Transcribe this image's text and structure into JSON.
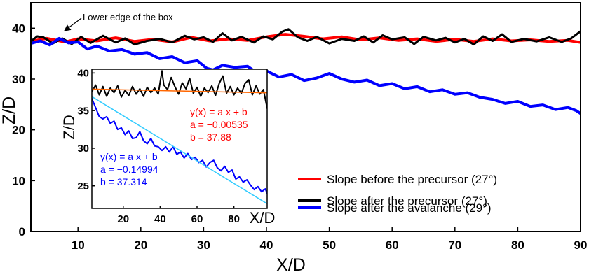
{
  "chart_data": [
    {
      "type": "line",
      "xlabel": "X/D",
      "ylabel": "Z/D",
      "xlim": [
        2.5,
        90
      ],
      "ylim": [
        0,
        45
      ],
      "xticks": [
        10,
        20,
        30,
        40,
        50,
        60,
        70,
        80,
        90
      ],
      "yticks": [
        0,
        10,
        20,
        30,
        40
      ],
      "grid": false,
      "legend_position": "bottom-right",
      "annotations": [
        {
          "text": "Lower edge of the box",
          "arrow_target": [
            4,
            38.2
          ]
        }
      ],
      "series": [
        {
          "name": "Slope before the precursor (27°)",
          "color": "#ff0000",
          "points": [
            [
              2.5,
              37.4
            ],
            [
              5,
              38.0
            ],
            [
              8,
              37.3
            ],
            [
              10,
              37.9
            ],
            [
              13,
              37.5
            ],
            [
              16,
              38.1
            ],
            [
              19,
              37.4
            ],
            [
              22,
              37.8
            ],
            [
              25,
              37.3
            ],
            [
              28,
              38.2
            ],
            [
              31,
              37.5
            ],
            [
              34,
              37.9
            ],
            [
              37,
              37.6
            ],
            [
              40,
              38.3
            ],
            [
              43,
              38.8
            ],
            [
              46,
              38.4
            ],
            [
              49,
              37.9
            ],
            [
              52,
              38.3
            ],
            [
              55,
              37.7
            ],
            [
              58,
              38.1
            ],
            [
              61,
              37.6
            ],
            [
              64,
              37.9
            ],
            [
              67,
              37.4
            ],
            [
              70,
              37.8
            ],
            [
              73,
              37.4
            ],
            [
              76,
              37.9
            ],
            [
              79,
              37.5
            ],
            [
              82,
              37.7
            ],
            [
              85,
              37.4
            ],
            [
              88,
              37.6
            ],
            [
              90,
              37.2
            ]
          ]
        },
        {
          "name": "Slope after the precursor (27°)",
          "color": "#000000",
          "points": [
            [
              2.5,
              37.4
            ],
            [
              3.5,
              38.4
            ],
            [
              4.5,
              38.2
            ],
            [
              6,
              37.0
            ],
            [
              7.5,
              38.0
            ],
            [
              9,
              36.9
            ],
            [
              10.5,
              38.3
            ],
            [
              12,
              37.1
            ],
            [
              14,
              38.5
            ],
            [
              16,
              37.2
            ],
            [
              17.5,
              38.0
            ],
            [
              19,
              36.8
            ],
            [
              21,
              37.5
            ],
            [
              23,
              37.9
            ],
            [
              25,
              37.2
            ],
            [
              27,
              38.5
            ],
            [
              28.5,
              37.8
            ],
            [
              30,
              38.2
            ],
            [
              31.5,
              37.3
            ],
            [
              33,
              39.0
            ],
            [
              34.5,
              37.6
            ],
            [
              36,
              38.3
            ],
            [
              38,
              37.2
            ],
            [
              39.5,
              38.4
            ],
            [
              41,
              37.8
            ],
            [
              42.5,
              39.3
            ],
            [
              43.5,
              39.8
            ],
            [
              45,
              38.2
            ],
            [
              46.5,
              37.5
            ],
            [
              48,
              38.3
            ],
            [
              50,
              37.0
            ],
            [
              52,
              37.9
            ],
            [
              54,
              37.5
            ],
            [
              55.5,
              38.4
            ],
            [
              57,
              37.2
            ],
            [
              58.5,
              38.6
            ],
            [
              60,
              37.8
            ],
            [
              62,
              38.2
            ],
            [
              63.5,
              36.9
            ],
            [
              65,
              38.3
            ],
            [
              67,
              37.6
            ],
            [
              68.5,
              38.1
            ],
            [
              70,
              37.2
            ],
            [
              71.5,
              37.9
            ],
            [
              73,
              36.8
            ],
            [
              74.5,
              38.4
            ],
            [
              76,
              37.5
            ],
            [
              77.5,
              38.8
            ],
            [
              79,
              37.3
            ],
            [
              81,
              37.9
            ],
            [
              83,
              37.4
            ],
            [
              85,
              38.2
            ],
            [
              87,
              37.3
            ],
            [
              88.5,
              38.0
            ],
            [
              90,
              39.4
            ]
          ]
        },
        {
          "name": "Slope after the avalanche (29°)",
          "color": "#0000ff",
          "points": [
            [
              2.5,
              37.0
            ],
            [
              4,
              37.5
            ],
            [
              5.5,
              36.7
            ],
            [
              7,
              38.0
            ],
            [
              8.5,
              37.1
            ],
            [
              10,
              37.3
            ],
            [
              11.5,
              35.9
            ],
            [
              13,
              36.5
            ],
            [
              15,
              35.5
            ],
            [
              17,
              35.8
            ],
            [
              19,
              34.9
            ],
            [
              21,
              35.2
            ],
            [
              23,
              34.0
            ],
            [
              25,
              34.4
            ],
            [
              27,
              33.2
            ],
            [
              29,
              33.6
            ],
            [
              30.5,
              32.1
            ],
            [
              31.5,
              31.8
            ],
            [
              33,
              32.7
            ],
            [
              35,
              32.3
            ],
            [
              37,
              32.5
            ],
            [
              38.5,
              31.2
            ],
            [
              40,
              31.6
            ],
            [
              42,
              30.4
            ],
            [
              44,
              30.9
            ],
            [
              46,
              29.7
            ],
            [
              48,
              30.2
            ],
            [
              50,
              31.1
            ],
            [
              52,
              30.0
            ],
            [
              54,
              29.4
            ],
            [
              56,
              29.8
            ],
            [
              58,
              28.7
            ],
            [
              60,
              29.1
            ],
            [
              62,
              28.1
            ],
            [
              64,
              28.5
            ],
            [
              66,
              27.5
            ],
            [
              68,
              27.9
            ],
            [
              70,
              27.0
            ],
            [
              72,
              27.3
            ],
            [
              74,
              26.4
            ],
            [
              76,
              26.0
            ],
            [
              78,
              25.2
            ],
            [
              80,
              25.6
            ],
            [
              82,
              24.6
            ],
            [
              84,
              24.9
            ],
            [
              86,
              24.0
            ],
            [
              88,
              24.4
            ],
            [
              89.3,
              23.8
            ],
            [
              90,
              23.2
            ]
          ]
        }
      ]
    },
    {
      "type": "line",
      "xlabel": "X/D",
      "ylabel": "Z/D",
      "xlim": [
        3,
        98
      ],
      "ylim": [
        22,
        40.5
      ],
      "xticks": [
        20,
        40,
        60,
        80
      ],
      "yticks": [
        25,
        30,
        35,
        40
      ],
      "grid": false,
      "annotations": [
        {
          "lines": [
            "y(x) = a x + b",
            "a = −0.00535",
            "b = 37.88"
          ],
          "color": "#ff0000"
        },
        {
          "lines": [
            "y(x) = a x + b",
            "a = −0.14994",
            "b = 37.314"
          ],
          "color": "#0000ff"
        }
      ],
      "series": [
        {
          "name": "",
          "color": "#000000",
          "points": [
            [
              3,
              37.5
            ],
            [
              5,
              38.4
            ],
            [
              7,
              37.1
            ],
            [
              9,
              38.2
            ],
            [
              11,
              36.9
            ],
            [
              13,
              38.0
            ],
            [
              15,
              37.4
            ],
            [
              17,
              38.3
            ],
            [
              19,
              36.8
            ],
            [
              21,
              37.7
            ],
            [
              23,
              37.0
            ],
            [
              25,
              38.2
            ],
            [
              27,
              37.2
            ],
            [
              29,
              37.9
            ],
            [
              31,
              36.9
            ],
            [
              33,
              38.1
            ],
            [
              35,
              37.4
            ],
            [
              37,
              38.0
            ],
            [
              39,
              37.2
            ],
            [
              41,
              40.3
            ],
            [
              42,
              38.4
            ],
            [
              44,
              37.8
            ],
            [
              46,
              39.4
            ],
            [
              48,
              38.2
            ],
            [
              50,
              37.2
            ],
            [
              52,
              38.7
            ],
            [
              54,
              37.9
            ],
            [
              56,
              39.3
            ],
            [
              58,
              37.3
            ],
            [
              60,
              38.1
            ],
            [
              62,
              36.9
            ],
            [
              64,
              38.0
            ],
            [
              66,
              37.4
            ],
            [
              68,
              38.3
            ],
            [
              70,
              37.0
            ],
            [
              72,
              38.6
            ],
            [
              74,
              39.6
            ],
            [
              76,
              37.3
            ],
            [
              78,
              38.2
            ],
            [
              80,
              37.1
            ],
            [
              82,
              38.0
            ],
            [
              84,
              37.3
            ],
            [
              86,
              38.6
            ],
            [
              88,
              39.1
            ],
            [
              90,
              37.1
            ],
            [
              92,
              38.3
            ],
            [
              94,
              37.2
            ],
            [
              96,
              37.8
            ],
            [
              98,
              35.3
            ]
          ]
        },
        {
          "name": "",
          "color": "#ff6600",
          "points": [
            [
              3,
              37.86
            ],
            [
              98,
              37.36
            ]
          ]
        },
        {
          "name": "",
          "color": "#0000ff",
          "points": [
            [
              3,
              36.6
            ],
            [
              5,
              35.4
            ],
            [
              7,
              34.2
            ],
            [
              9,
              33.9
            ],
            [
              11,
              34.2
            ],
            [
              13,
              33.3
            ],
            [
              15,
              33.6
            ],
            [
              17,
              32.5
            ],
            [
              19,
              32.7
            ],
            [
              21,
              31.8
            ],
            [
              23,
              32.3
            ],
            [
              25,
              31.3
            ],
            [
              27,
              31.4
            ],
            [
              29,
              32.2
            ],
            [
              31,
              31.0
            ],
            [
              33,
              30.6
            ],
            [
              35,
              31.3
            ],
            [
              37,
              30.3
            ],
            [
              39,
              30.2
            ],
            [
              41,
              29.7
            ],
            [
              43,
              30.2
            ],
            [
              45,
              29.5
            ],
            [
              47,
              30.2
            ],
            [
              49,
              29.2
            ],
            [
              51,
              29.5
            ],
            [
              53,
              28.7
            ],
            [
              55,
              29.3
            ],
            [
              57,
              28.5
            ],
            [
              59,
              28.8
            ],
            [
              61,
              28.1
            ],
            [
              63,
              28.4
            ],
            [
              65,
              27.5
            ],
            [
              67,
              28.1
            ],
            [
              69,
              28.4
            ],
            [
              71,
              27.4
            ],
            [
              73,
              27.0
            ],
            [
              75,
              27.6
            ],
            [
              77,
              26.8
            ],
            [
              79,
              27.1
            ],
            [
              81,
              25.9
            ],
            [
              83,
              26.2
            ],
            [
              85,
              25.5
            ],
            [
              87,
              25.8
            ],
            [
              89,
              25.1
            ],
            [
              91,
              24.5
            ],
            [
              93,
              24.9
            ],
            [
              95,
              24.2
            ],
            [
              97,
              24.6
            ],
            [
              98,
              24.0
            ]
          ]
        },
        {
          "name": "",
          "color": "#33ccff",
          "points": [
            [
              3,
              36.86
            ],
            [
              98,
              22.62
            ]
          ]
        }
      ]
    }
  ]
}
